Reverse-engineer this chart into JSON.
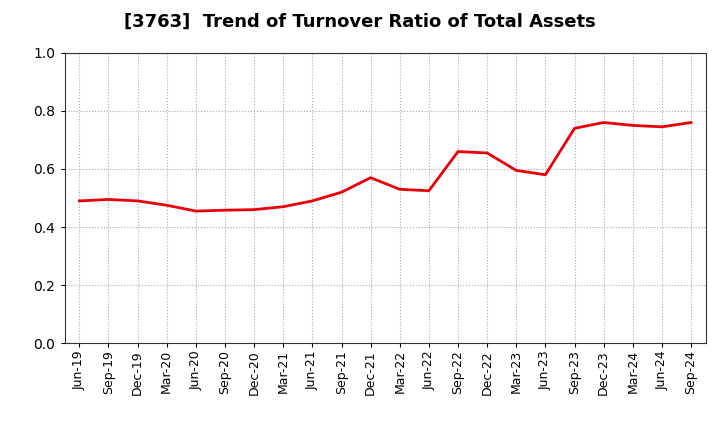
{
  "title": "[3763]  Trend of Turnover Ratio of Total Assets",
  "x_labels": [
    "Jun-19",
    "Sep-19",
    "Dec-19",
    "Mar-20",
    "Jun-20",
    "Sep-20",
    "Dec-20",
    "Mar-21",
    "Jun-21",
    "Sep-21",
    "Dec-21",
    "Mar-22",
    "Jun-22",
    "Sep-22",
    "Dec-22",
    "Mar-23",
    "Jun-23",
    "Sep-23",
    "Dec-23",
    "Mar-24",
    "Jun-24",
    "Sep-24"
  ],
  "y_values": [
    0.49,
    0.495,
    0.49,
    0.475,
    0.455,
    0.458,
    0.46,
    0.47,
    0.49,
    0.52,
    0.57,
    0.53,
    0.525,
    0.66,
    0.655,
    0.595,
    0.58,
    0.74,
    0.76,
    0.75,
    0.745,
    0.76
  ],
  "line_color": "#E8000A",
  "line_width": 2.0,
  "ylim": [
    0.0,
    1.0
  ],
  "yticks": [
    0.0,
    0.2,
    0.4,
    0.6,
    0.8,
    1.0
  ],
  "grid_color": "#aaaaaa",
  "grid_style": "dotted",
  "background_color": "#ffffff",
  "title_fontsize": 13,
  "tick_fontsize": 9,
  "fill_color": "#ffcccc",
  "fill_alpha": 0.0
}
